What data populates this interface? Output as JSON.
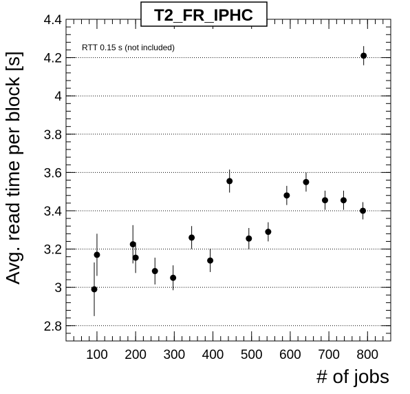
{
  "chart_data": {
    "type": "scatter",
    "title": "T2_FR_IPHC",
    "annotation": "RTT 0.15 s (not included)",
    "xlabel": "# of jobs",
    "ylabel": "Avg. read time per block [s]",
    "xlim": [
      20,
      860
    ],
    "ylim": [
      2.72,
      4.4
    ],
    "xticks": [
      100,
      200,
      300,
      400,
      500,
      600,
      700,
      800
    ],
    "yticks": [
      2.8,
      3,
      3.2,
      3.4,
      3.6,
      3.8,
      4,
      4.2,
      4.4
    ],
    "xtick_labels": [
      "100",
      "200",
      "300",
      "400",
      "500",
      "600",
      "700",
      "800"
    ],
    "ytick_labels": [
      "2.8",
      "3",
      "3.2",
      "3.4",
      "3.6",
      "3.8",
      "4",
      "4.2",
      "4.4"
    ],
    "grid": {
      "y": true,
      "x": false,
      "style": "dotted"
    },
    "series": [
      {
        "points": [
          {
            "x": 93,
            "y": 2.99,
            "err": 0.14
          },
          {
            "x": 100,
            "y": 3.17,
            "err": 0.11
          },
          {
            "x": 193,
            "y": 3.225,
            "err": 0.1
          },
          {
            "x": 200,
            "y": 3.155,
            "err": 0.08
          },
          {
            "x": 250,
            "y": 3.085,
            "err": 0.07
          },
          {
            "x": 297,
            "y": 3.05,
            "err": 0.065
          },
          {
            "x": 345,
            "y": 3.26,
            "err": 0.06
          },
          {
            "x": 393,
            "y": 3.14,
            "err": 0.06
          },
          {
            "x": 443,
            "y": 3.555,
            "err": 0.06
          },
          {
            "x": 493,
            "y": 3.255,
            "err": 0.055
          },
          {
            "x": 543,
            "y": 3.29,
            "err": 0.05
          },
          {
            "x": 591,
            "y": 3.48,
            "err": 0.05
          },
          {
            "x": 641,
            "y": 3.55,
            "err": 0.05
          },
          {
            "x": 690,
            "y": 3.455,
            "err": 0.05
          },
          {
            "x": 738,
            "y": 3.455,
            "err": 0.05
          },
          {
            "x": 788,
            "y": 3.4,
            "err": 0.045
          },
          {
            "x": 790,
            "y": 4.21,
            "err": 0.05
          }
        ]
      }
    ]
  }
}
